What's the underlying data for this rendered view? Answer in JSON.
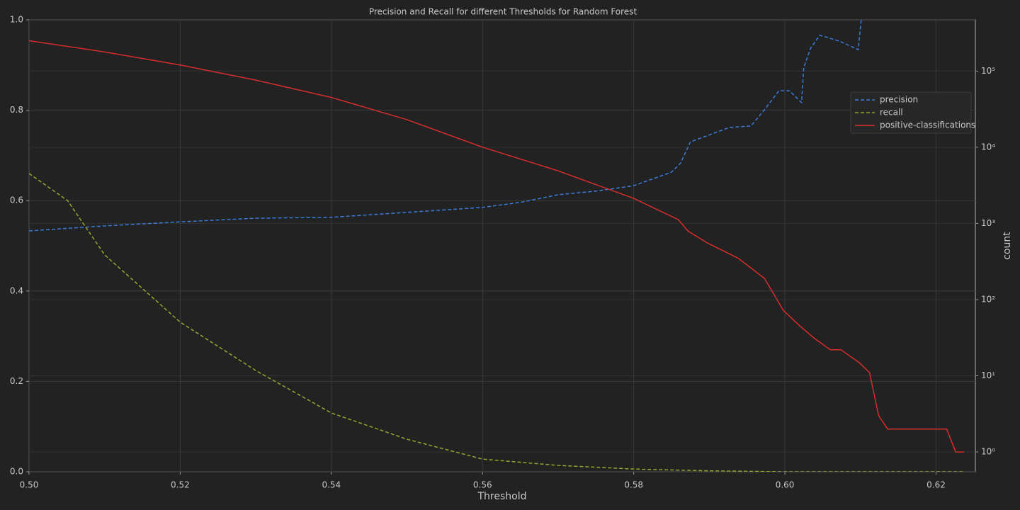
{
  "chart_data": {
    "type": "line",
    "title": "Precision and Recall for different Thresholds for Random Forest",
    "x_label": "Threshold",
    "y2_label": "count",
    "xlim": [
      0.5,
      0.6252
    ],
    "xticks": [
      {
        "value": 0.5,
        "label": "0.50"
      },
      0.52,
      0.54,
      0.56,
      0.58,
      {
        "value": 0.6,
        "label": "0.60"
      },
      0.62
    ],
    "ylim": [
      0,
      1
    ],
    "yticks": [
      {
        "value": 0,
        "label": "0.0"
      },
      0.2,
      0.4,
      0.6,
      0.8,
      {
        "value": 1,
        "label": "1.0"
      }
    ],
    "y2lim": [
      0.55,
      470000
    ],
    "y2scale": "log",
    "y2ticks": [
      {
        "value": 1,
        "label": "10⁰"
      },
      {
        "value": 10,
        "label": "10¹"
      },
      {
        "value": 100,
        "label": "10²"
      },
      {
        "value": 1000,
        "label": "10³"
      },
      {
        "value": 10000,
        "label": "10⁴"
      },
      {
        "value": 100000,
        "label": "10⁵"
      }
    ],
    "grid": true,
    "legend_loc": "center right",
    "series": [
      {
        "name": "precision",
        "color": "#3d7bd8",
        "linestyle": "dashed",
        "axis": "y",
        "x": [
          0.5,
          0.51,
          0.52,
          0.53,
          0.54,
          0.55,
          0.56,
          0.565,
          0.57,
          0.575,
          0.58,
          0.585,
          0.5862,
          0.5875,
          0.5901,
          0.5927,
          0.5955,
          0.5973,
          0.5992,
          0.6006,
          0.6022,
          0.6025,
          0.6034,
          0.6046,
          0.6072,
          0.6097,
          0.6101
        ],
        "values": [
          0.533,
          0.544,
          0.553,
          0.561,
          0.563,
          0.574,
          0.585,
          0.596,
          0.613,
          0.621,
          0.633,
          0.663,
          0.683,
          0.73,
          0.746,
          0.762,
          0.765,
          0.801,
          0.843,
          0.843,
          0.817,
          0.895,
          0.937,
          0.966,
          0.953,
          0.934,
          1.0
        ]
      },
      {
        "name": "recall",
        "color": "#8fa832",
        "linestyle": "dashed",
        "axis": "y",
        "x": [
          0.5,
          0.5051,
          0.51,
          0.52,
          0.53,
          0.54,
          0.55,
          0.56,
          0.57,
          0.58,
          0.59,
          0.6,
          0.6237
        ],
        "values": [
          0.66,
          0.6,
          0.48,
          0.331,
          0.224,
          0.13,
          0.072,
          0.028,
          0.014,
          0.006,
          0.002,
          0.0,
          0.0
        ]
      },
      {
        "name": "positive-classifications",
        "color": "#d62d2d",
        "linestyle": "solid",
        "axis": "y2",
        "x": [
          0.5,
          0.51,
          0.52,
          0.53,
          0.54,
          0.55,
          0.56,
          0.57,
          0.58,
          0.5859,
          0.5872,
          0.5898,
          0.5938,
          0.5973,
          0.5998,
          0.602,
          0.6039,
          0.606,
          0.6074,
          0.6098,
          0.6112,
          0.6124,
          0.6136,
          0.6214,
          0.6226,
          0.6237
        ],
        "values": [
          250000,
          178000,
          120000,
          76000,
          45000,
          23000,
          10000,
          4900,
          2130,
          1120,
          790,
          550,
          350,
          190,
          72,
          45,
          31,
          22,
          22,
          15,
          11,
          3,
          2,
          2,
          1,
          1
        ]
      }
    ]
  }
}
